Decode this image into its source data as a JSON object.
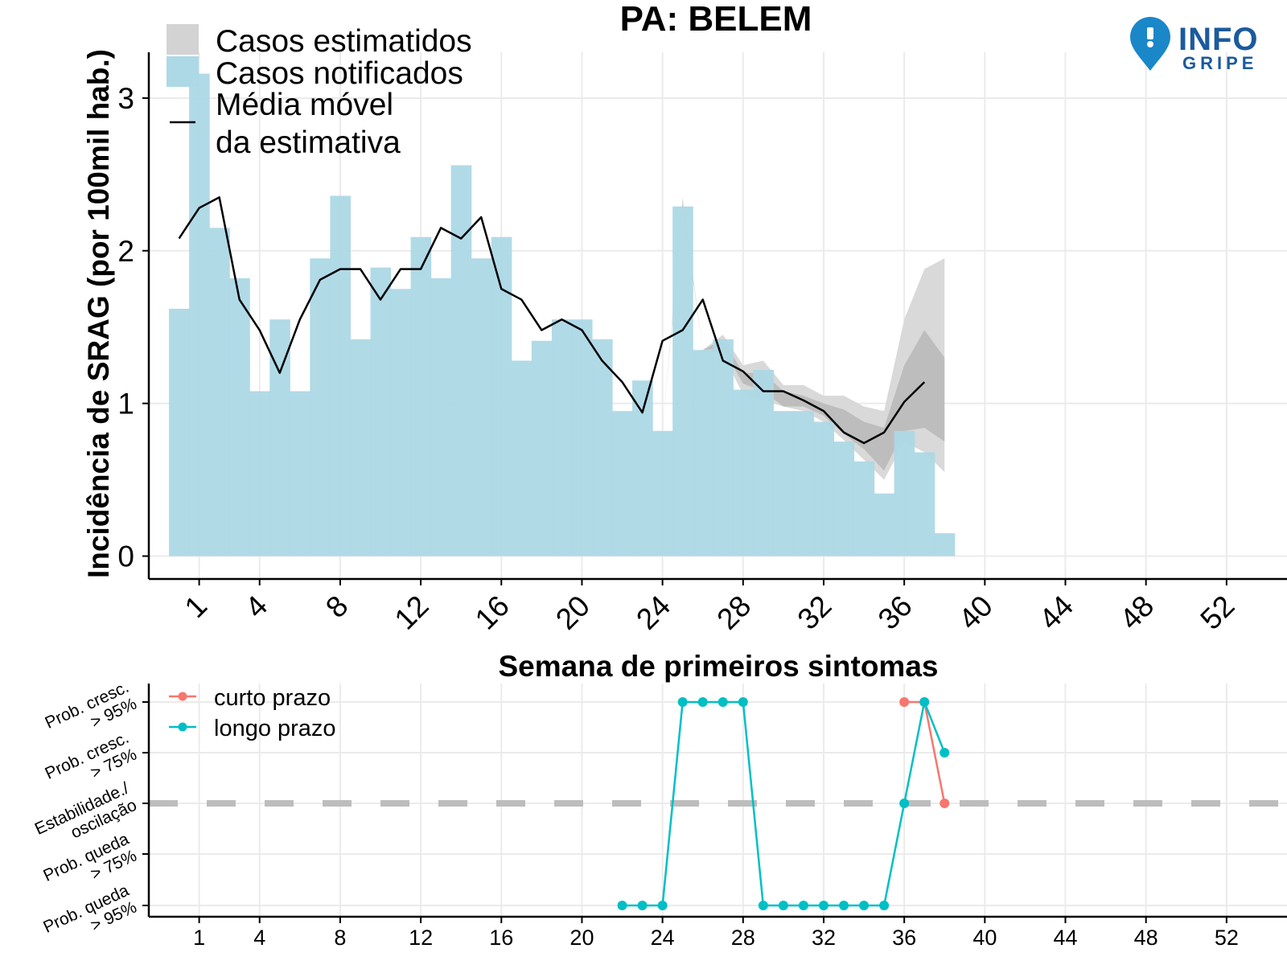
{
  "logo": {
    "line1": "INFO",
    "line2": "GRIPE",
    "pin_color": "#1a87c9",
    "text_color": "#1b5a9c"
  },
  "chart_data": [
    {
      "type": "bar",
      "title": "PA: BELEM",
      "xlabel": "Semana de primeiros sintomas",
      "ylabel": "Incidência de SRAG (por 100mil hab.)",
      "xlim": [
        -1.5,
        55
      ],
      "ylim": [
        -0.15,
        3.3
      ],
      "x_ticks": [
        1,
        4,
        8,
        12,
        16,
        20,
        24,
        28,
        32,
        36,
        40,
        44,
        48,
        52
      ],
      "y_ticks": [
        0,
        1,
        2,
        3
      ],
      "legend": {
        "position": "top-left",
        "items": [
          "Casos estimatidos",
          "Casos notificados",
          "Média móvel",
          "da estimativa"
        ]
      },
      "colors": {
        "notified": "#add8e6",
        "estimated": "#d3d3d3",
        "band_outer": "#d9d9d9",
        "band_inner": "#bdbdbd",
        "line": "#000000"
      },
      "series": [
        {
          "name": "Casos notificados",
          "x": [
            0,
            1,
            2,
            3,
            4,
            5,
            6,
            7,
            8,
            9,
            10,
            11,
            12,
            13,
            14,
            15,
            16,
            17,
            18,
            19,
            20,
            21,
            22,
            23,
            24,
            25,
            26,
            27,
            28,
            29,
            30,
            31,
            32,
            33,
            34,
            35,
            36,
            37,
            38
          ],
          "values": [
            1.62,
            3.16,
            2.15,
            1.82,
            1.08,
            1.55,
            1.08,
            1.95,
            2.36,
            1.42,
            1.89,
            1.75,
            2.09,
            1.82,
            2.56,
            1.95,
            2.09,
            1.28,
            1.41,
            1.55,
            1.55,
            1.42,
            0.95,
            1.15,
            0.82,
            2.29,
            1.35,
            1.42,
            1.09,
            1.22,
            0.95,
            0.95,
            0.88,
            0.75,
            0.62,
            0.41,
            0.82,
            0.68,
            0.15
          ]
        },
        {
          "name": "Média móvel da estimativa",
          "x": [
            0,
            1,
            2,
            3,
            4,
            5,
            6,
            7,
            8,
            9,
            10,
            11,
            12,
            13,
            14,
            15,
            16,
            17,
            18,
            19,
            20,
            21,
            22,
            23,
            24,
            25,
            26,
            27,
            28,
            29,
            30,
            31,
            32,
            33,
            34,
            35,
            36,
            37
          ],
          "values": [
            2.08,
            2.28,
            2.35,
            1.68,
            1.48,
            1.2,
            1.55,
            1.81,
            1.88,
            1.88,
            1.68,
            1.88,
            1.88,
            2.15,
            2.08,
            2.22,
            1.75,
            1.68,
            1.48,
            1.55,
            1.48,
            1.28,
            1.14,
            0.94,
            1.41,
            1.48,
            1.68,
            1.28,
            1.21,
            1.08,
            1.08,
            1.02,
            0.95,
            0.81,
            0.74,
            0.81,
            1.01,
            1.14
          ]
        }
      ],
      "estimate_band": {
        "x": [
          24,
          25,
          26,
          27,
          28,
          29,
          30,
          31,
          32,
          33,
          34,
          35,
          36,
          37,
          38
        ],
        "outer_lo": [
          0.82,
          2.29,
          1.35,
          1.32,
          1.06,
          1.02,
          0.98,
          0.95,
          0.88,
          0.76,
          0.63,
          0.5,
          0.75,
          0.68,
          0.55
        ],
        "outer_hi": [
          0.82,
          2.35,
          1.35,
          1.45,
          1.25,
          1.28,
          1.12,
          1.12,
          1.05,
          1.05,
          0.98,
          0.95,
          1.55,
          1.88,
          1.95
        ],
        "inner_lo": [
          0.82,
          2.29,
          1.35,
          1.36,
          1.13,
          1.08,
          0.98,
          0.98,
          0.92,
          0.8,
          0.7,
          0.56,
          0.82,
          0.84,
          0.75
        ],
        "inner_hi": [
          0.82,
          2.3,
          1.35,
          1.42,
          1.2,
          1.2,
          1.08,
          1.05,
          1.0,
          0.96,
          0.88,
          0.84,
          1.25,
          1.48,
          1.3
        ]
      }
    },
    {
      "type": "line",
      "x_ticks": [
        1,
        4,
        8,
        12,
        16,
        20,
        24,
        28,
        32,
        36,
        40,
        44,
        48,
        52
      ],
      "xlim": [
        -1.5,
        55
      ],
      "y_levels": [
        2,
        1,
        0,
        -1,
        -2
      ],
      "y_tick_labels": [
        [
          "Prob. cresc.",
          "> 95%"
        ],
        [
          "Prob. cresc.",
          "> 75%"
        ],
        [
          "Estabilidade./",
          "oscilação"
        ],
        [
          "Prob. queda",
          "> 75%"
        ],
        [
          "Prob. queda",
          "> 95%"
        ]
      ],
      "legend": {
        "position": "top-left",
        "items": [
          "curto prazo",
          "longo prazo"
        ]
      },
      "colors": {
        "curto prazo": "#f8766d",
        "longo prazo": "#00bfc4",
        "reference": "#bdbdbd"
      },
      "series": [
        {
          "name": "curto prazo",
          "x": [
            36,
            37,
            38
          ],
          "values": [
            2,
            2,
            0
          ]
        },
        {
          "name": "longo prazo",
          "x": [
            22,
            23,
            24,
            25,
            26,
            27,
            28,
            29,
            30,
            31,
            32,
            33,
            34,
            35,
            36,
            37,
            38
          ],
          "values": [
            -2,
            -2,
            -2,
            2,
            2,
            2,
            2,
            -2,
            -2,
            -2,
            -2,
            -2,
            -2,
            -2,
            0,
            2,
            1
          ]
        }
      ]
    }
  ]
}
